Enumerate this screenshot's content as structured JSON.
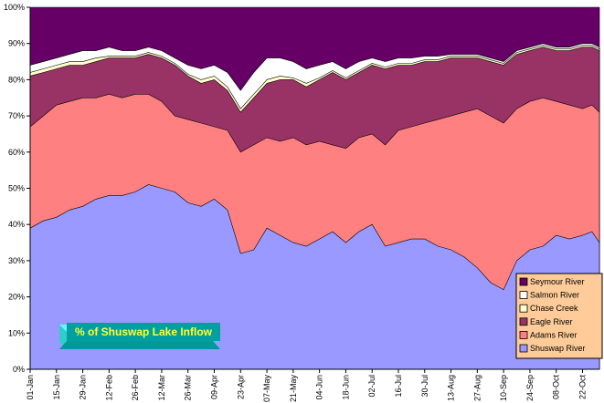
{
  "chart_data": {
    "type": "area",
    "stacked": true,
    "percent": true,
    "title": "% of Shuswap Lake Inflow",
    "xlabel": "",
    "ylabel": "",
    "ylim": [
      0,
      100
    ],
    "y_ticks": [
      "0%",
      "10%",
      "20%",
      "30%",
      "40%",
      "50%",
      "60%",
      "70%",
      "80%",
      "90%",
      "100%"
    ],
    "x_tick_labels": [
      "01-Jan",
      "15-Jan",
      "29-Jan",
      "12-Feb",
      "26-Feb",
      "12-Mar",
      "26-Mar",
      "09-Apr",
      "23-Apr",
      "07-May",
      "21-May",
      "04-Jun",
      "18-Jun",
      "02-Jul",
      "16-Jul",
      "30-Jul",
      "13-Aug",
      "27-Aug",
      "10-Sep",
      "24-Sep",
      "08-Oct",
      "22-Oct"
    ],
    "x_tick_days": [
      1,
      15,
      29,
      43,
      57,
      71,
      85,
      99,
      113,
      127,
      141,
      155,
      169,
      183,
      197,
      211,
      225,
      239,
      253,
      267,
      281,
      295
    ],
    "x_range_days": [
      1,
      304
    ],
    "grid": false,
    "legend_position": "bottom-right",
    "series": [
      {
        "name": "Shuswap River",
        "color": "#9999ff",
        "cum_top": [
          [
            1,
            39
          ],
          [
            8,
            41
          ],
          [
            15,
            42
          ],
          [
            22,
            44
          ],
          [
            29,
            45
          ],
          [
            36,
            47
          ],
          [
            43,
            48
          ],
          [
            50,
            48
          ],
          [
            57,
            49
          ],
          [
            64,
            51
          ],
          [
            71,
            50
          ],
          [
            78,
            49
          ],
          [
            85,
            46
          ],
          [
            92,
            45
          ],
          [
            99,
            47
          ],
          [
            106,
            44
          ],
          [
            113,
            32
          ],
          [
            120,
            33
          ],
          [
            127,
            39
          ],
          [
            134,
            37
          ],
          [
            141,
            35
          ],
          [
            148,
            34
          ],
          [
            155,
            36
          ],
          [
            162,
            38
          ],
          [
            169,
            35
          ],
          [
            176,
            38
          ],
          [
            183,
            40
          ],
          [
            190,
            34
          ],
          [
            197,
            35
          ],
          [
            204,
            36
          ],
          [
            211,
            36
          ],
          [
            218,
            34
          ],
          [
            225,
            33
          ],
          [
            232,
            31
          ],
          [
            239,
            28
          ],
          [
            246,
            24
          ],
          [
            253,
            22
          ],
          [
            260,
            30
          ],
          [
            267,
            33
          ],
          [
            274,
            34
          ],
          [
            281,
            37
          ],
          [
            288,
            36
          ],
          [
            295,
            37
          ],
          [
            300,
            38
          ],
          [
            304,
            35
          ]
        ]
      },
      {
        "name": "Adams River",
        "color": "#ff8080",
        "cum_top": [
          [
            1,
            67
          ],
          [
            8,
            70
          ],
          [
            15,
            73
          ],
          [
            22,
            74
          ],
          [
            29,
            75
          ],
          [
            36,
            75
          ],
          [
            43,
            76
          ],
          [
            50,
            75
          ],
          [
            57,
            76
          ],
          [
            64,
            76
          ],
          [
            71,
            74
          ],
          [
            78,
            70
          ],
          [
            85,
            69
          ],
          [
            92,
            68
          ],
          [
            99,
            67
          ],
          [
            106,
            66
          ],
          [
            113,
            60
          ],
          [
            120,
            62
          ],
          [
            127,
            64
          ],
          [
            134,
            63
          ],
          [
            141,
            64
          ],
          [
            148,
            62
          ],
          [
            155,
            63
          ],
          [
            162,
            62
          ],
          [
            169,
            61
          ],
          [
            176,
            64
          ],
          [
            183,
            65
          ],
          [
            190,
            62
          ],
          [
            197,
            66
          ],
          [
            204,
            67
          ],
          [
            211,
            68
          ],
          [
            218,
            69
          ],
          [
            225,
            70
          ],
          [
            232,
            71
          ],
          [
            239,
            72
          ],
          [
            246,
            70
          ],
          [
            253,
            68
          ],
          [
            260,
            72
          ],
          [
            267,
            74
          ],
          [
            274,
            75
          ],
          [
            281,
            74
          ],
          [
            288,
            73
          ],
          [
            295,
            72
          ],
          [
            300,
            73
          ],
          [
            304,
            71
          ]
        ]
      },
      {
        "name": "Eagle River",
        "color": "#993366",
        "cum_top": [
          [
            1,
            81
          ],
          [
            8,
            82
          ],
          [
            15,
            83
          ],
          [
            22,
            84
          ],
          [
            29,
            84
          ],
          [
            36,
            85
          ],
          [
            43,
            86
          ],
          [
            50,
            86
          ],
          [
            57,
            86
          ],
          [
            64,
            87
          ],
          [
            71,
            86
          ],
          [
            78,
            84
          ],
          [
            85,
            81
          ],
          [
            92,
            79
          ],
          [
            99,
            80
          ],
          [
            106,
            77
          ],
          [
            113,
            71
          ],
          [
            120,
            75
          ],
          [
            127,
            79
          ],
          [
            134,
            80
          ],
          [
            141,
            80
          ],
          [
            148,
            78
          ],
          [
            155,
            80
          ],
          [
            162,
            82
          ],
          [
            169,
            80
          ],
          [
            176,
            82
          ],
          [
            183,
            84
          ],
          [
            190,
            83
          ],
          [
            197,
            84
          ],
          [
            204,
            84
          ],
          [
            211,
            85
          ],
          [
            218,
            85
          ],
          [
            225,
            86
          ],
          [
            232,
            86
          ],
          [
            239,
            86
          ],
          [
            246,
            85
          ],
          [
            253,
            84
          ],
          [
            260,
            87
          ],
          [
            267,
            88
          ],
          [
            274,
            89
          ],
          [
            281,
            88
          ],
          [
            288,
            88
          ],
          [
            295,
            89
          ],
          [
            300,
            89
          ],
          [
            304,
            88
          ]
        ]
      },
      {
        "name": "Chase Creek",
        "color": "#ffffcc",
        "cum_top": [
          [
            1,
            82
          ],
          [
            8,
            83
          ],
          [
            15,
            84
          ],
          [
            22,
            85
          ],
          [
            29,
            85
          ],
          [
            36,
            86
          ],
          [
            43,
            86.5
          ],
          [
            50,
            86.5
          ],
          [
            57,
            86.5
          ],
          [
            64,
            87.5
          ],
          [
            71,
            86.5
          ],
          [
            78,
            84.5
          ],
          [
            85,
            81.5
          ],
          [
            92,
            80
          ],
          [
            99,
            81
          ],
          [
            106,
            78
          ],
          [
            113,
            72
          ],
          [
            120,
            76
          ],
          [
            127,
            80
          ],
          [
            134,
            81
          ],
          [
            141,
            80.5
          ],
          [
            148,
            79
          ],
          [
            155,
            80.5
          ],
          [
            162,
            82.5
          ],
          [
            169,
            80.5
          ],
          [
            176,
            82.5
          ],
          [
            183,
            84.5
          ],
          [
            190,
            83.5
          ],
          [
            197,
            84.5
          ],
          [
            204,
            84.5
          ],
          [
            211,
            85.5
          ],
          [
            218,
            85.5
          ],
          [
            225,
            86.5
          ],
          [
            232,
            86.5
          ],
          [
            239,
            86.5
          ],
          [
            246,
            85.5
          ],
          [
            253,
            84.5
          ],
          [
            260,
            87.5
          ],
          [
            267,
            88.5
          ],
          [
            274,
            89.5
          ],
          [
            281,
            88.5
          ],
          [
            288,
            88.5
          ],
          [
            295,
            89.5
          ],
          [
            300,
            89.5
          ],
          [
            304,
            88.5
          ]
        ]
      },
      {
        "name": "Salmon River",
        "color": "#ffffff",
        "cum_top": [
          [
            1,
            84
          ],
          [
            8,
            85
          ],
          [
            15,
            86
          ],
          [
            22,
            87
          ],
          [
            29,
            88
          ],
          [
            36,
            88
          ],
          [
            43,
            89
          ],
          [
            50,
            88
          ],
          [
            57,
            88
          ],
          [
            64,
            89
          ],
          [
            71,
            88
          ],
          [
            78,
            86
          ],
          [
            85,
            84
          ],
          [
            92,
            83
          ],
          [
            99,
            84
          ],
          [
            106,
            82
          ],
          [
            113,
            77
          ],
          [
            120,
            82
          ],
          [
            127,
            86
          ],
          [
            134,
            86
          ],
          [
            141,
            85
          ],
          [
            148,
            83
          ],
          [
            155,
            84
          ],
          [
            162,
            85
          ],
          [
            169,
            83
          ],
          [
            176,
            85
          ],
          [
            183,
            86
          ],
          [
            190,
            85
          ],
          [
            197,
            86
          ],
          [
            204,
            86
          ],
          [
            211,
            86.5
          ],
          [
            218,
            86.5
          ],
          [
            225,
            87
          ],
          [
            232,
            87
          ],
          [
            239,
            87
          ],
          [
            246,
            86
          ],
          [
            253,
            85
          ],
          [
            260,
            88
          ],
          [
            267,
            89
          ],
          [
            274,
            90
          ],
          [
            281,
            89
          ],
          [
            288,
            89
          ],
          [
            295,
            90
          ],
          [
            300,
            90
          ],
          [
            304,
            89
          ]
        ]
      },
      {
        "name": "Seymour River",
        "color": "#660066",
        "cum_top": [
          [
            1,
            100
          ],
          [
            304,
            100
          ]
        ]
      }
    ]
  }
}
